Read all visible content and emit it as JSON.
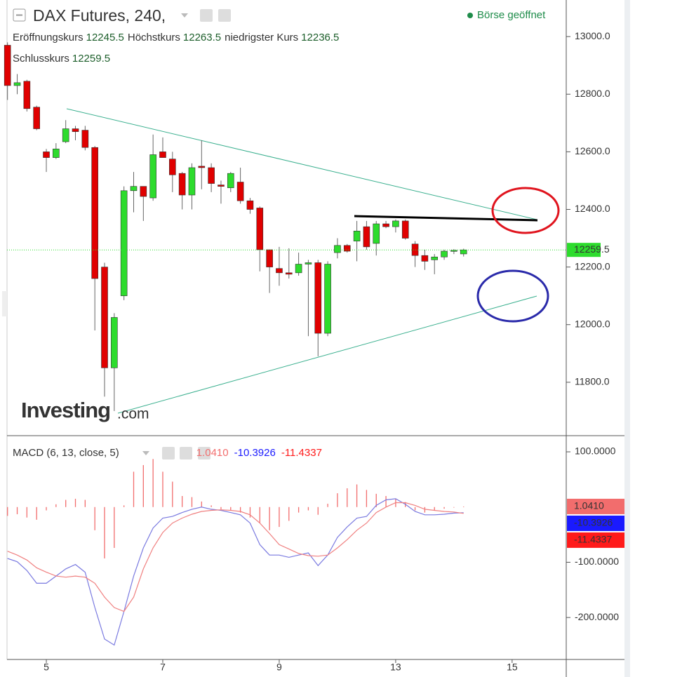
{
  "chart_data": [
    {
      "type": "candlestick",
      "title": "DAX Futures, 240,",
      "status": "Börse geöffnet",
      "ohlc_labels": {
        "open": "Eröffnungskurs",
        "high": "Höchstkurs",
        "low": "niedrigster Kurs",
        "close": "Schlusskurs"
      },
      "watermark": {
        "brand": "Investing",
        "suffix": ".com"
      },
      "categories": [
        null,
        null,
        null,
        null,
        "5",
        null,
        null,
        null,
        null,
        null,
        null,
        null,
        null,
        null,
        null,
        null,
        "7",
        null,
        null,
        null,
        null,
        null,
        null,
        null,
        null,
        null,
        null,
        null,
        "9",
        null,
        null,
        null,
        null,
        null,
        null,
        null,
        null,
        null,
        null,
        null,
        "13",
        null,
        null,
        null,
        null,
        null,
        null,
        null,
        null,
        null,
        null,
        null,
        "15"
      ],
      "open": [
        12970,
        12830,
        12845,
        12755,
        12600,
        12580,
        12635,
        12680,
        12675,
        12615,
        12200,
        11850,
        12100,
        12465,
        12480,
        12440,
        12600,
        12575,
        12525,
        12450,
        12550,
        12545,
        12485,
        12475,
        12495,
        12430,
        12405,
        12260,
        12195,
        12180,
        12180,
        12210,
        12215,
        11970,
        12250,
        12275,
        12290,
        12340,
        12282,
        12350,
        12340,
        12360,
        12280,
        12240,
        12225,
        12235,
        12255,
        12245.5,
        null,
        null,
        null,
        null,
        null
      ],
      "high": [
        12980,
        12870,
        12850,
        12760,
        12610,
        12630,
        12710,
        12690,
        12690,
        12620,
        12215,
        12040,
        12480,
        12530,
        12480,
        12660,
        12650,
        12600,
        12530,
        12560,
        12640,
        12560,
        12500,
        12530,
        12545,
        12440,
        12410,
        12260,
        12270,
        12265,
        12250,
        12225,
        12225,
        12220,
        12300,
        12280,
        12360,
        12360,
        12360,
        12360,
        12365,
        12365,
        12290,
        12260,
        12245,
        12260,
        12262,
        12263.5,
        null,
        null,
        null,
        null,
        null
      ],
      "low": [
        12780,
        12800,
        12740,
        12675,
        12530,
        12575,
        12630,
        12640,
        12605,
        11980,
        11750,
        11700,
        12085,
        12390,
        12360,
        12430,
        12580,
        12460,
        12400,
        12400,
        12470,
        12460,
        12420,
        12460,
        12420,
        12385,
        12185,
        12110,
        12135,
        12160,
        12170,
        11960,
        11890,
        11960,
        12230,
        12250,
        12220,
        12260,
        12240,
        12335,
        12320,
        12295,
        12200,
        12190,
        12175,
        12225,
        12245,
        12236.5,
        null,
        null,
        null,
        null,
        null
      ],
      "close": [
        12830,
        12840,
        12750,
        12680,
        12580,
        12610,
        12680,
        12670,
        12615,
        12160,
        11850,
        12025,
        12465,
        12480,
        12445,
        12590,
        12580,
        12520,
        12450,
        12545,
        12545,
        12490,
        12480,
        12525,
        12430,
        12400,
        12260,
        12200,
        12180,
        12175,
        12210,
        12215,
        11970,
        12210,
        12275,
        12255,
        12325,
        12270,
        12350,
        12340,
        12360,
        12300,
        12240,
        12220,
        12235,
        12255,
        12258,
        12259.5,
        null,
        null,
        null,
        null,
        null
      ],
      "up_color": "#2ddc2d",
      "down_color": "#e00000",
      "ylim": [
        11617,
        13127
      ],
      "yticks": [
        {
          "value": 11800,
          "label": "11800.0"
        },
        {
          "value": 12000,
          "label": "12000.0"
        },
        {
          "value": 12200,
          "label": "12200.0"
        },
        {
          "value": 12400,
          "label": "12400.0"
        },
        {
          "value": 12600,
          "label": "12600.0"
        },
        {
          "value": 12800,
          "label": "12800.0"
        },
        {
          "value": 13000,
          "label": "13000.0"
        }
      ],
      "grid": false
    },
    {
      "type": "macd",
      "title": "MACD (6, 13, close, 5)",
      "series": [
        {
          "type": "bar",
          "color": "#f26d6d",
          "values": [
            -16,
            -13,
            -19,
            -23,
            -6,
            5,
            13,
            15,
            13,
            -42,
            -93,
            -74,
            3,
            64,
            76,
            87,
            64,
            46,
            20,
            18,
            10,
            3,
            -4,
            -6,
            -10,
            -19,
            -29,
            -42,
            -36,
            -25,
            -10,
            -6,
            -14,
            6,
            25,
            34,
            41,
            31,
            24,
            20,
            15,
            9,
            -6,
            -10,
            -6,
            -3,
            -1,
            1.041,
            null,
            null,
            null,
            null,
            null
          ],
          "value_labels": [
            null,
            null,
            null,
            null,
            null,
            null,
            null,
            null,
            null,
            null,
            null,
            null,
            null,
            null,
            null,
            null,
            null,
            null,
            null,
            null,
            null,
            null,
            null,
            null,
            null,
            null,
            null,
            null,
            null,
            null,
            null,
            null,
            null,
            null,
            null,
            null,
            null,
            null,
            null,
            null,
            null,
            null,
            null,
            null,
            null,
            null,
            null,
            "1.0410",
            null,
            null,
            null,
            null,
            null
          ]
        },
        {
          "type": "line",
          "color": "#1a1aff",
          "line_color": "#7a7ae0",
          "values": [
            -93,
            -99,
            -115,
            -138,
            -138,
            -125,
            -112,
            -104,
            -118,
            -182,
            -239,
            -250,
            -189,
            -125,
            -74,
            -38,
            -20,
            -17,
            -10,
            -4,
            0,
            -4,
            -6,
            -10,
            -14,
            -29,
            -68,
            -87,
            -87,
            -91,
            -87,
            -83,
            -106,
            -87,
            -55,
            -36,
            -20,
            -17,
            3,
            13,
            15,
            5,
            -8,
            -14,
            -14,
            -13,
            -11,
            -10.3926,
            null,
            null,
            null,
            null,
            null
          ]
        },
        {
          "type": "line",
          "color": "#ff1a1a",
          "line_color": "#f08080",
          "values": [
            -80,
            -87,
            -96,
            -110,
            -118,
            -125,
            -127,
            -125,
            -127,
            -138,
            -163,
            -182,
            -189,
            -163,
            -112,
            -74,
            -46,
            -29,
            -20,
            -13,
            -8,
            -6,
            -5,
            -6,
            -8,
            -14,
            -29,
            -48,
            -68,
            -76,
            -84,
            -88,
            -89,
            -87,
            -74,
            -59,
            -42,
            -29,
            -10,
            0,
            8,
            8,
            3,
            -4,
            -6,
            -8,
            -9,
            -11.4337,
            null,
            null,
            null,
            null,
            null
          ]
        }
      ],
      "ylim": [
        -276,
        128
      ],
      "yticks": [
        {
          "value": -200,
          "label": "-200.0000"
        },
        {
          "value": -100,
          "label": "-100.0000"
        },
        {
          "value": 100,
          "label": "100.0000"
        }
      ],
      "grid": false
    }
  ]
}
